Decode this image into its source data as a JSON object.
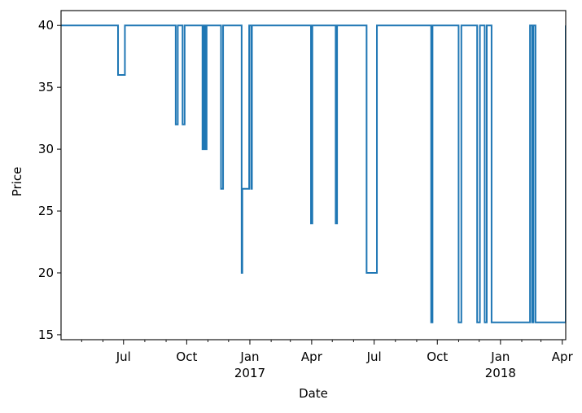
{
  "chart_data": {
    "type": "line",
    "xlabel": "Date",
    "ylabel": "Price",
    "xlim": [
      "2016-04-01",
      "2018-04-06"
    ],
    "ylim": [
      14.6,
      41.2
    ],
    "grid": false,
    "line_color": "#1f77b4",
    "y_ticks": [
      {
        "value": 15,
        "label": "15"
      },
      {
        "value": 20,
        "label": "20"
      },
      {
        "value": 25,
        "label": "25"
      },
      {
        "value": 30,
        "label": "30"
      },
      {
        "value": 35,
        "label": "35"
      },
      {
        "value": 40,
        "label": "40"
      }
    ],
    "x_major_ticks": [
      {
        "date": "2016-07-01",
        "label": "Jul",
        "sublabel": ""
      },
      {
        "date": "2016-10-01",
        "label": "Oct",
        "sublabel": ""
      },
      {
        "date": "2017-01-01",
        "label": "Jan",
        "sublabel": "2017"
      },
      {
        "date": "2017-04-01",
        "label": "Apr",
        "sublabel": ""
      },
      {
        "date": "2017-07-01",
        "label": "Jul",
        "sublabel": ""
      },
      {
        "date": "2017-10-01",
        "label": "Oct",
        "sublabel": ""
      },
      {
        "date": "2018-01-01",
        "label": "Jan",
        "sublabel": "2018"
      },
      {
        "date": "2018-04-01",
        "label": "Apr",
        "sublabel": ""
      }
    ],
    "x_minor_ticks": [
      "2016-05-01",
      "2016-06-01",
      "2016-08-01",
      "2016-09-01",
      "2016-11-01",
      "2016-12-01",
      "2017-02-01",
      "2017-03-01",
      "2017-05-01",
      "2017-06-01",
      "2017-08-01",
      "2017-09-01",
      "2017-11-01",
      "2017-12-01",
      "2018-02-01",
      "2018-03-01"
    ],
    "series": [
      {
        "drawstyle": "steps-post",
        "x": [
          "2016-04-01",
          "2016-06-23",
          "2016-07-03",
          "2016-09-15",
          "2016-09-18",
          "2016-09-25",
          "2016-09-28",
          "2016-10-24",
          "2016-10-26",
          "2016-10-28",
          "2016-10-30",
          "2016-11-20",
          "2016-11-23",
          "2016-12-20",
          "2016-12-21",
          "2016-12-31",
          "2017-01-03",
          "2017-01-04",
          "2017-03-31",
          "2017-04-02",
          "2017-05-06",
          "2017-05-08",
          "2017-06-20",
          "2017-07-05",
          "2017-09-22",
          "2017-09-24",
          "2017-11-01",
          "2017-11-05",
          "2017-11-28",
          "2017-12-02",
          "2017-12-09",
          "2017-12-12",
          "2017-12-19",
          "2018-02-13",
          "2018-02-16",
          "2018-02-18",
          "2018-02-21",
          "2018-04-06"
        ],
        "y": [
          40,
          36,
          40,
          32,
          40,
          32,
          40,
          30,
          40,
          30,
          40,
          26.8,
          40,
          20,
          26.8,
          40,
          26.8,
          40,
          24,
          40,
          24,
          40,
          20,
          40,
          16,
          40,
          16,
          40,
          16,
          40,
          16,
          40,
          16,
          40,
          16,
          40,
          16,
          40
        ]
      }
    ]
  }
}
